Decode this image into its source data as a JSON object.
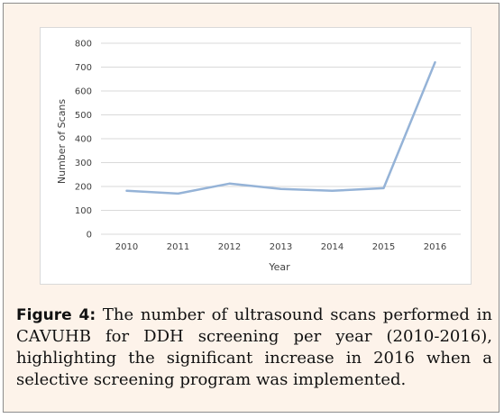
{
  "chart_data": {
    "type": "line",
    "categories": [
      "2010",
      "2011",
      "2012",
      "2013",
      "2014",
      "2015",
      "2016"
    ],
    "series": [
      {
        "values": [
          182,
          170,
          212,
          190,
          182,
          193,
          720
        ],
        "color": "#95b3d7"
      }
    ],
    "title": "",
    "xlabel": "Year",
    "ylabel": "Number of Scans",
    "ylim": [
      0,
      800
    ],
    "yticks": [
      "0",
      "100",
      "200",
      "300",
      "400",
      "500",
      "600",
      "700",
      "800"
    ],
    "grid": true,
    "gridColor": "#d9d9d9"
  },
  "caption": {
    "lead": "Figure 4:",
    "text": " The number of ultrasound scans performed in CAVUHB for DDH screening per year (2010-2016), highlighting the significant increase in 2016 when a selective screening program was implemented."
  }
}
